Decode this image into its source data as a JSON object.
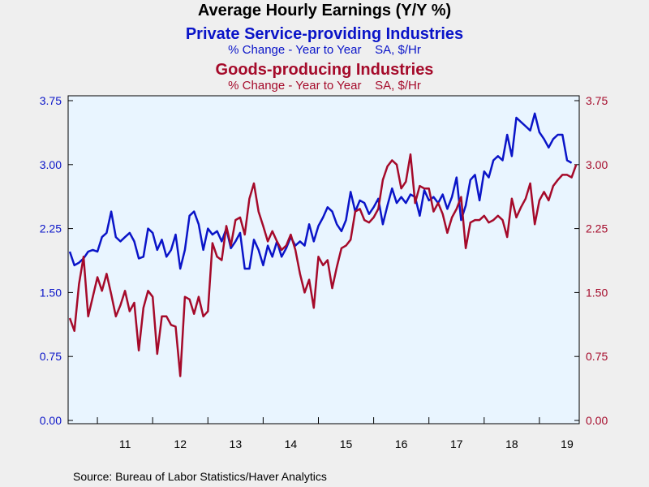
{
  "title": "Average Hourly Earnings (Y/Y %)",
  "series_headers": [
    {
      "name": "Private Service-providing Industries",
      "sub": "% Change - Year to Year    SA, $/Hr",
      "color": "#0a14c8"
    },
    {
      "name": "Goods-producing Industries",
      "sub": "% Change - Year to Year    SA, $/Hr",
      "color": "#a50a2a"
    }
  ],
  "source": "Source:  Bureau of Labor Statistics/Haver Analytics",
  "chart_data": {
    "type": "line",
    "start": "2010-07",
    "frequency": "monthly",
    "x_tick_labels": [
      "11",
      "12",
      "13",
      "14",
      "15",
      "16",
      "17",
      "18",
      "19"
    ],
    "y_left": {
      "min": 0,
      "max": 3.75,
      "ticks": [
        "0.00",
        "0.75",
        "1.50",
        "2.25",
        "3.00",
        "3.75"
      ],
      "color": "#0a14c8"
    },
    "y_right": {
      "min": 0,
      "max": 3.75,
      "ticks": [
        "0.00",
        "0.75",
        "1.50",
        "2.25",
        "3.00",
        "3.75"
      ],
      "color": "#a50a2a"
    },
    "grid": false,
    "series": [
      {
        "name": "Private Service-providing Industries",
        "color": "#0a14c8",
        "values": [
          1.98,
          1.82,
          1.85,
          1.9,
          1.98,
          2.0,
          1.98,
          2.15,
          2.2,
          2.45,
          2.15,
          2.1,
          2.15,
          2.2,
          2.1,
          1.9,
          1.92,
          2.25,
          2.2,
          2.0,
          2.12,
          1.92,
          2.0,
          2.18,
          1.78,
          2.0,
          2.4,
          2.45,
          2.3,
          2.0,
          2.25,
          2.18,
          2.22,
          2.1,
          2.25,
          2.02,
          2.1,
          2.2,
          1.78,
          1.78,
          2.12,
          2.0,
          1.82,
          2.05,
          1.92,
          2.1,
          1.92,
          2.02,
          2.15,
          2.05,
          2.1,
          2.05,
          2.3,
          2.1,
          2.28,
          2.38,
          2.5,
          2.45,
          2.3,
          2.22,
          2.35,
          2.68,
          2.45,
          2.58,
          2.55,
          2.42,
          2.5,
          2.6,
          2.3,
          2.52,
          2.72,
          2.55,
          2.62,
          2.55,
          2.65,
          2.62,
          2.4,
          2.7,
          2.58,
          2.62,
          2.55,
          2.65,
          2.48,
          2.62,
          2.85,
          2.35,
          2.52,
          2.82,
          2.88,
          2.58,
          2.92,
          2.85,
          3.05,
          3.1,
          3.05,
          3.35,
          3.1,
          3.55,
          3.5,
          3.45,
          3.4,
          3.6,
          3.38,
          3.3,
          3.2,
          3.3,
          3.35,
          3.35,
          3.05,
          3.02
        ]
      },
      {
        "name": "Goods-producing Industries",
        "color": "#a50a2a",
        "values": [
          1.2,
          1.05,
          1.6,
          1.92,
          1.22,
          1.45,
          1.68,
          1.52,
          1.72,
          1.48,
          1.22,
          1.35,
          1.52,
          1.28,
          1.38,
          0.82,
          1.32,
          1.52,
          1.45,
          0.78,
          1.22,
          1.22,
          1.12,
          1.1,
          0.52,
          1.45,
          1.42,
          1.25,
          1.45,
          1.22,
          1.28,
          2.08,
          1.92,
          1.88,
          2.28,
          2.05,
          2.35,
          2.38,
          2.18,
          2.6,
          2.78,
          2.45,
          2.28,
          2.1,
          2.22,
          2.1,
          2.0,
          2.05,
          2.18,
          2.0,
          1.72,
          1.5,
          1.65,
          1.32,
          1.92,
          1.82,
          1.88,
          1.55,
          1.8,
          2.02,
          2.05,
          2.12,
          2.45,
          2.48,
          2.35,
          2.32,
          2.38,
          2.48,
          2.82,
          2.98,
          3.05,
          3.0,
          2.72,
          2.8,
          3.12,
          2.55,
          2.75,
          2.72,
          2.72,
          2.45,
          2.55,
          2.42,
          2.2,
          2.38,
          2.48,
          2.62,
          2.02,
          2.32,
          2.35,
          2.35,
          2.4,
          2.32,
          2.35,
          2.4,
          2.35,
          2.15,
          2.6,
          2.38,
          2.5,
          2.6,
          2.78,
          2.3,
          2.58,
          2.68,
          2.58,
          2.75,
          2.82,
          2.88,
          2.88,
          2.85,
          3.0
        ]
      }
    ]
  }
}
